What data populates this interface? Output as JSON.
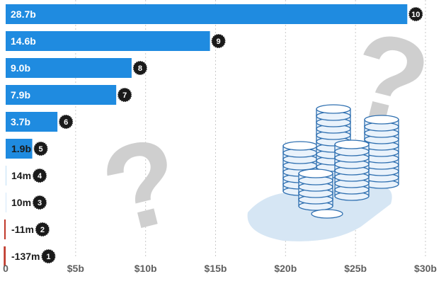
{
  "chart_data": {
    "type": "bar",
    "orientation": "horizontal",
    "title": "",
    "xlabel": "",
    "ylabel": "",
    "xlim": [
      0,
      30
    ],
    "unit": "billions",
    "grid": true,
    "grid_style": "dotted-vertical",
    "bar_color": "#1f8be0",
    "negative_color": "#c0392b",
    "x_ticks": [
      "0",
      "$5b",
      "$10b",
      "$15b",
      "$20b",
      "$25b",
      "$30b"
    ],
    "x_tick_values": [
      0,
      5,
      10,
      15,
      20,
      25,
      30
    ],
    "bars": [
      {
        "rank": "10",
        "label": "28.7b",
        "value": 28.7
      },
      {
        "rank": "9",
        "label": "14.6b",
        "value": 14.6
      },
      {
        "rank": "8",
        "label": "9.0b",
        "value": 9.0
      },
      {
        "rank": "7",
        "label": "7.9b",
        "value": 7.9
      },
      {
        "rank": "6",
        "label": "3.7b",
        "value": 3.7
      },
      {
        "rank": "5",
        "label": "1.9b",
        "value": 1.9
      },
      {
        "rank": "4",
        "label": "14m",
        "value": 0.014
      },
      {
        "rank": "3",
        "label": "10m",
        "value": 0.01
      },
      {
        "rank": "2",
        "label": "-11m",
        "value": -0.011
      },
      {
        "rank": "1",
        "label": "-137m",
        "value": -0.137
      }
    ]
  },
  "decorations": {
    "question_marks": [
      "?",
      "?"
    ],
    "illustration": "coin-stacks"
  }
}
